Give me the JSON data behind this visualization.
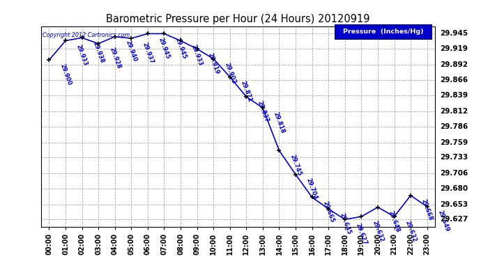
{
  "title": "Barometric Pressure per Hour (24 Hours) 20120919",
  "legend_label": "Pressure  (Inches/Hg)",
  "copyright": "Copyright 2012 Cartronics.com",
  "hours": [
    "00:00",
    "01:00",
    "02:00",
    "03:00",
    "04:00",
    "05:00",
    "06:00",
    "07:00",
    "08:00",
    "09:00",
    "10:00",
    "11:00",
    "12:00",
    "13:00",
    "14:00",
    "15:00",
    "16:00",
    "17:00",
    "18:00",
    "19:00",
    "20:00",
    "21:00",
    "22:00",
    "23:00"
  ],
  "values": [
    29.9,
    29.933,
    29.938,
    29.928,
    29.94,
    29.937,
    29.945,
    29.945,
    29.933,
    29.919,
    29.902,
    29.871,
    29.837,
    29.818,
    29.745,
    29.704,
    29.665,
    29.645,
    29.627,
    29.632,
    29.648,
    29.632,
    29.668,
    29.649
  ],
  "line_color": "#0000cc",
  "bg_color": "#ffffff",
  "grid_color": "#aaaaaa",
  "title_color": "#000000",
  "label_color": "#0000cc",
  "legend_bg": "#0000cc",
  "legend_text_color": "#ffffff",
  "ylim_min": 29.614,
  "ylim_max": 29.958,
  "ytick_values": [
    29.627,
    29.653,
    29.68,
    29.706,
    29.733,
    29.759,
    29.786,
    29.812,
    29.839,
    29.866,
    29.892,
    29.919,
    29.945
  ]
}
